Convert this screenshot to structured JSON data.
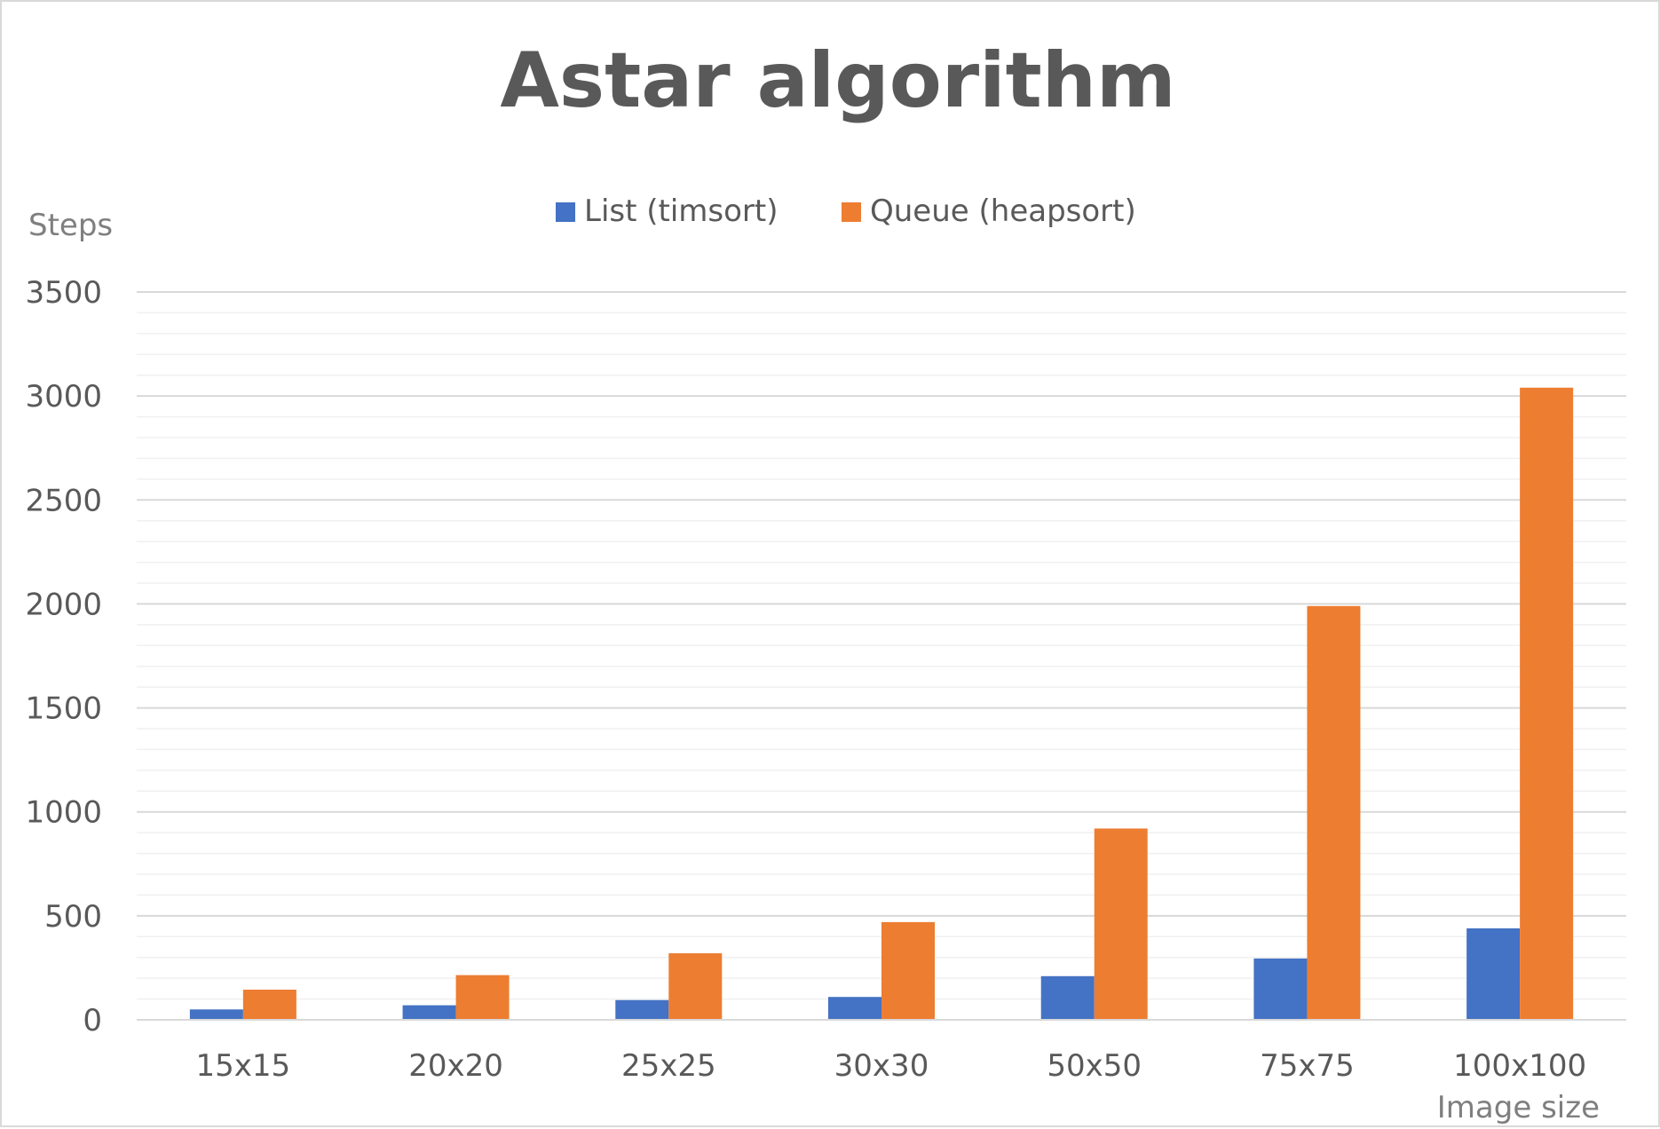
{
  "chart_data": {
    "type": "bar",
    "title": "Astar algorithm",
    "ylabel": "Steps",
    "xlabel": "Image size",
    "categories": [
      "15x15",
      "20x20",
      "25x25",
      "30x30",
      "50x50",
      "75x75",
      "100x100"
    ],
    "series": [
      {
        "name": "List (timsort)",
        "color": "#4472C4",
        "values": [
          50,
          70,
          95,
          110,
          210,
          295,
          440
        ]
      },
      {
        "name": "Queue (heapsort)",
        "color": "#ED7D31",
        "values": [
          145,
          215,
          320,
          470,
          920,
          1990,
          3040
        ]
      }
    ],
    "ylim": [
      0,
      3500
    ],
    "yticks": [
      0,
      500,
      1000,
      1500,
      2000,
      2500,
      3000,
      3500
    ],
    "minor_gridlines": true,
    "legend": "top-center"
  }
}
